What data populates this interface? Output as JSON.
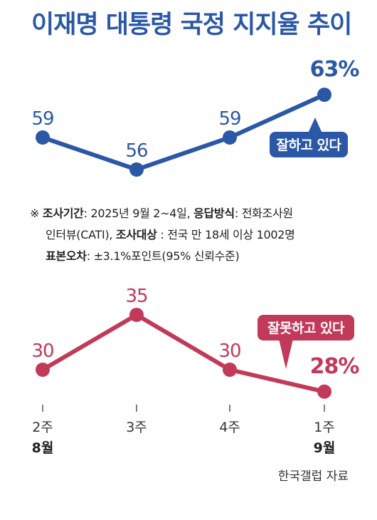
{
  "title": "이재명 대통령 국정 지지율 추이",
  "notes": {
    "mark": "※",
    "period_label": "조사기간",
    "period_value": ": 2025년 9월 2~4일, ",
    "method_label": "응답방식",
    "method_value": ": 전화조사원",
    "method_value2": "인터뷰(CATI), ",
    "target_label": "조사대상",
    "target_value": " : 전국 만 18세 이상 1002명",
    "error_label": "표본오차",
    "error_value": ": ±3.1%포인트(95% 신뢰수준)"
  },
  "source": "한국갤럽 자료",
  "colors": {
    "approve": "#2b58a6",
    "disapprove": "#c23a5a",
    "title": "#2b58a6",
    "axis": "#555555"
  },
  "chart_data": {
    "type": "line",
    "categories": [
      {
        "week": "2주",
        "month": "8월"
      },
      {
        "week": "3주",
        "month": ""
      },
      {
        "week": "4주",
        "month": ""
      },
      {
        "week": "1주",
        "month": "9월"
      }
    ],
    "series": [
      {
        "name": "잘하고 있다",
        "values": [
          59,
          56,
          59,
          63
        ],
        "labels": [
          "59",
          "56",
          "59",
          "63%"
        ]
      },
      {
        "name": "잘못하고 있다",
        "values": [
          30,
          35,
          30,
          28
        ],
        "labels": [
          "30",
          "35",
          "30",
          "28%"
        ]
      }
    ]
  }
}
